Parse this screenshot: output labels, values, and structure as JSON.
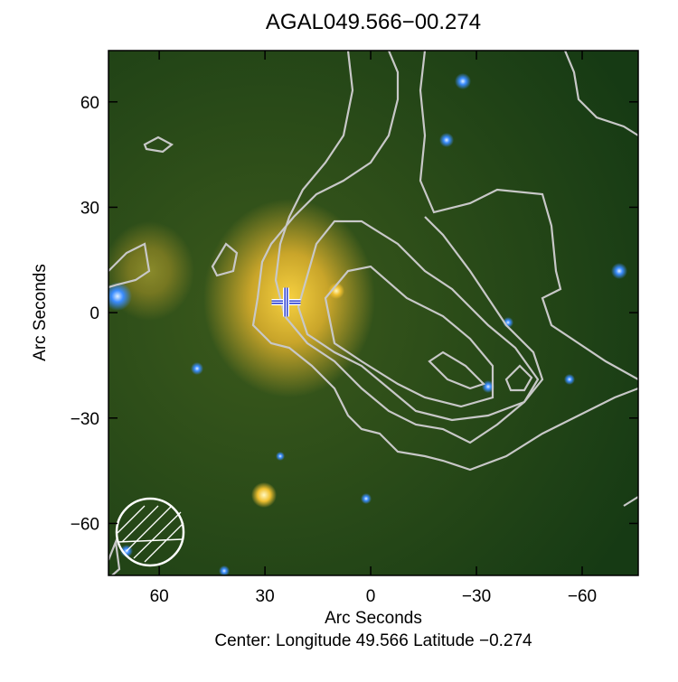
{
  "chart_data": {
    "type": "image",
    "title": "AGAL049.566−00.274",
    "x_label": "Arc Seconds",
    "y_label": "Arc Seconds",
    "footer": "Center:  Longitude 49.566 Latitude −0.274",
    "xlim": [
      74.4,
      -75.9
    ],
    "ylim": [
      -74.8,
      74.6
    ],
    "xticks": [
      60,
      30,
      0,
      {
        "value": -30,
        "label": "−30"
      },
      {
        "value": -60,
        "label": "−60"
      }
    ],
    "yticks": [
      {
        "value": -60,
        "label": "−60"
      },
      {
        "value": -30,
        "label": "−30"
      },
      0,
      30,
      60
    ],
    "marker": {
      "x": 24,
      "y": 3,
      "color": "#1a2fd0"
    }
  }
}
